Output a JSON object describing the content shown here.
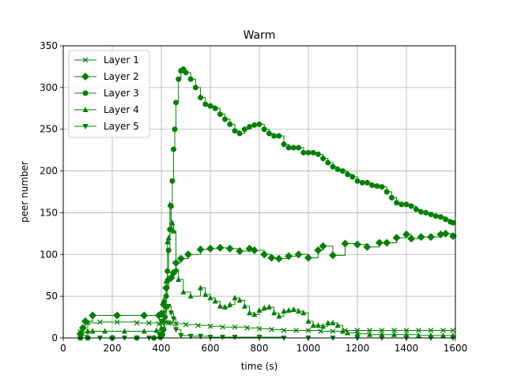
{
  "chart_data": {
    "type": "line",
    "title": "Warm",
    "xlabel": "time (s)",
    "ylabel": "peer number",
    "xlim": [
      0,
      1600
    ],
    "ylim": [
      0,
      350
    ],
    "xticks": [
      0,
      200,
      400,
      600,
      800,
      1000,
      1200,
      1400,
      1600
    ],
    "yticks": [
      0,
      50,
      100,
      150,
      200,
      250,
      300,
      350
    ],
    "grid": true,
    "legend_position": "top-left",
    "line_color": "#008000",
    "series": [
      {
        "name": "Layer 1",
        "marker": "x",
        "x": [
          70,
          100,
          150,
          220,
          300,
          350,
          390,
          400,
          410,
          420,
          430,
          440,
          460,
          500,
          550,
          600,
          650,
          700,
          750,
          800,
          850,
          900,
          950,
          1000,
          1050,
          1100,
          1150,
          1200,
          1250,
          1300,
          1350,
          1400,
          1450,
          1500,
          1550,
          1590
        ],
        "y": [
          7,
          18,
          19,
          19,
          18,
          18,
          17,
          18,
          20,
          19,
          18,
          18,
          17,
          16,
          15,
          14,
          13,
          13,
          12,
          11,
          10,
          9,
          9,
          9,
          8,
          8,
          9,
          9,
          9,
          9,
          9,
          9,
          9,
          9,
          9,
          9
        ]
      },
      {
        "name": "Layer 2",
        "marker": "D",
        "x": [
          70,
          80,
          90,
          120,
          220,
          330,
          390,
          400,
          410,
          420,
          430,
          440,
          450,
          460,
          480,
          510,
          560,
          600,
          640,
          680,
          720,
          760,
          780,
          820,
          850,
          880,
          920,
          960,
          1000,
          1040,
          1060,
          1100,
          1150,
          1200,
          1240,
          1290,
          1320,
          1360,
          1400,
          1420,
          1460,
          1500,
          1540,
          1560,
          1590
        ],
        "y": [
          5,
          12,
          20,
          27,
          27,
          27,
          27,
          29,
          40,
          60,
          70,
          72,
          78,
          90,
          95,
          100,
          106,
          107,
          108,
          107,
          104,
          107,
          105,
          100,
          96,
          95,
          98,
          100,
          96,
          105,
          110,
          99,
          113,
          112,
          109,
          114,
          114,
          120,
          124,
          119,
          121,
          121,
          124,
          125,
          122
        ]
      },
      {
        "name": "Layer 3",
        "marker": "o",
        "x": [
          70,
          100,
          200,
          300,
          370,
          395,
          400,
          405,
          410,
          415,
          420,
          425,
          430,
          435,
          440,
          445,
          450,
          455,
          460,
          470,
          480,
          490,
          500,
          520,
          540,
          560,
          580,
          600,
          620,
          640,
          660,
          680,
          700,
          720,
          740,
          760,
          780,
          800,
          820,
          840,
          860,
          880,
          900,
          920,
          940,
          960,
          980,
          1000,
          1020,
          1040,
          1060,
          1080,
          1100,
          1120,
          1140,
          1160,
          1180,
          1200,
          1220,
          1240,
          1260,
          1280,
          1300,
          1320,
          1340,
          1360,
          1380,
          1400,
          1420,
          1440,
          1460,
          1480,
          1500,
          1520,
          1540,
          1560,
          1580,
          1590
        ],
        "y": [
          0,
          0,
          0,
          0,
          0,
          1,
          2,
          4,
          10,
          25,
          50,
          80,
          105,
          130,
          158,
          188,
          226,
          250,
          282,
          310,
          320,
          322,
          318,
          310,
          300,
          288,
          280,
          278,
          275,
          268,
          262,
          256,
          248,
          245,
          250,
          253,
          255,
          256,
          250,
          245,
          242,
          242,
          232,
          228,
          228,
          228,
          222,
          222,
          222,
          220,
          215,
          210,
          205,
          202,
          200,
          196,
          193,
          188,
          186,
          186,
          183,
          182,
          181,
          175,
          168,
          162,
          160,
          160,
          158,
          154,
          151,
          150,
          148,
          146,
          145,
          142,
          139,
          138
        ]
      },
      {
        "name": "Layer 4",
        "marker": "^",
        "x": [
          70,
          100,
          120,
          170,
          250,
          330,
          380,
          400,
          410,
          420,
          425,
          430,
          435,
          440,
          445,
          450,
          460,
          470,
          490,
          520,
          560,
          580,
          600,
          620,
          640,
          660,
          680,
          700,
          720,
          740,
          760,
          780,
          800,
          820,
          840,
          860,
          880,
          900,
          920,
          940,
          960,
          980,
          1000,
          1020,
          1040,
          1060,
          1080,
          1100,
          1120,
          1140,
          1160,
          1200,
          1250,
          1300,
          1350,
          1400,
          1450,
          1500,
          1550,
          1590
        ],
        "y": [
          3,
          8,
          8,
          8,
          8,
          8,
          9,
          12,
          45,
          68,
          115,
          120,
          160,
          130,
          138,
          128,
          82,
          70,
          55,
          50,
          60,
          52,
          48,
          44,
          38,
          37,
          40,
          48,
          45,
          38,
          30,
          28,
          33,
          36,
          37,
          30,
          26,
          32,
          33,
          34,
          32,
          30,
          20,
          15,
          15,
          14,
          18,
          18,
          15,
          8,
          6,
          5,
          4,
          4,
          4,
          4,
          3,
          3,
          3,
          3
        ]
      },
      {
        "name": "Layer 5",
        "marker": "v",
        "x": [
          70,
          100,
          150,
          200,
          250,
          300,
          350,
          390,
          400,
          410,
          420,
          430,
          440,
          450,
          460,
          480,
          520,
          560,
          600,
          650,
          700,
          800,
          900,
          1000,
          1100,
          1200,
          1300,
          1400,
          1500,
          1590
        ],
        "y": [
          0,
          0,
          0,
          0,
          0,
          0,
          0,
          5,
          20,
          30,
          35,
          38,
          30,
          23,
          10,
          3,
          2,
          2,
          1,
          1,
          1,
          1,
          0,
          0,
          0,
          0,
          0,
          0,
          0,
          0
        ]
      }
    ]
  }
}
